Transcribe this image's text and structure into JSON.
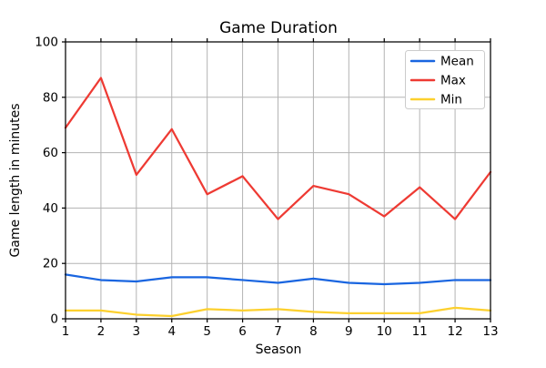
{
  "figure": {
    "background": "#ffffff"
  },
  "chart_data": {
    "type": "line",
    "title": "Game Duration",
    "xlabel": "Season",
    "ylabel": "Game length in minutes",
    "x": [
      1,
      2,
      3,
      4,
      5,
      6,
      7,
      8,
      9,
      10,
      11,
      12,
      13
    ],
    "xticks": [
      1,
      2,
      3,
      4,
      5,
      6,
      7,
      8,
      9,
      10,
      11,
      12,
      13
    ],
    "yticks": [
      0,
      20,
      40,
      60,
      80,
      100
    ],
    "xlim": [
      1,
      13
    ],
    "ylim": [
      0,
      100
    ],
    "grid": true,
    "legend_position": "upper right",
    "series": [
      {
        "name": "Mean",
        "color": "#1965e0",
        "values": [
          16,
          14,
          13.5,
          15,
          15,
          14,
          13,
          14.5,
          13,
          12.5,
          13,
          14,
          14
        ]
      },
      {
        "name": "Max",
        "color": "#ee3a33",
        "values": [
          69,
          87,
          52,
          68.5,
          45,
          51.5,
          36,
          48,
          45,
          37,
          47.5,
          36,
          53
        ]
      },
      {
        "name": "Min",
        "color": "#fcd02e",
        "values": [
          3,
          3,
          1.5,
          1,
          3.5,
          3,
          3.5,
          2.5,
          2,
          2,
          2,
          4,
          3
        ]
      }
    ]
  },
  "colors": {
    "grid": "#b3b3b3",
    "spine": "#000000",
    "tick": "#000000",
    "legend_border": "#cccccc",
    "legend_background": "#ffffff"
  }
}
